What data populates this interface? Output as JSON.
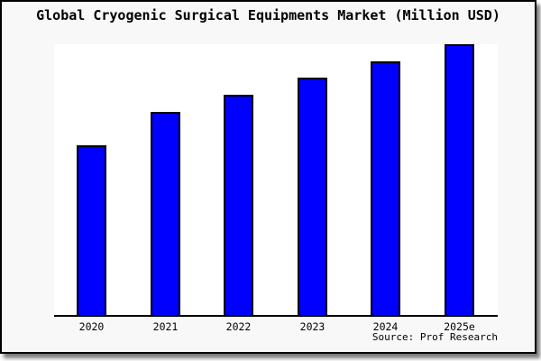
{
  "chart_data": {
    "type": "bar",
    "title": "Global Cryogenic Surgical Equipments Market (Million USD)",
    "categories": [
      "2020",
      "2021",
      "2022",
      "2023",
      "2024",
      "2025e"
    ],
    "values": [
      62.8,
      75.1,
      81.4,
      87.7,
      93.7,
      100.0
    ],
    "note": "No y-axis scale or value labels shown; values are bar heights relative to the tallest bar (2025e = 100).",
    "xlabel": "",
    "ylabel": "",
    "ylim": [
      0,
      100
    ],
    "grid": false,
    "legend": "none",
    "y_axis_visible": false,
    "source": "Source: Prof Research",
    "colors": {
      "bar_fill": "#0000ff",
      "bar_border": "#000000",
      "plot_background": "#ffffff",
      "card_background": "#f8f8f8",
      "border": "#000000",
      "text": "#000000"
    }
  }
}
